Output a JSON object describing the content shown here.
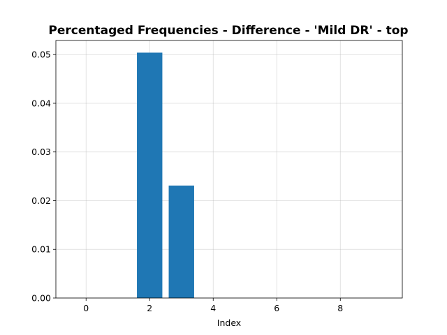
{
  "chart_data": {
    "type": "bar",
    "title": "Percentaged Frequencies - Difference - 'Mild DR' - top",
    "xlabel": "Index",
    "ylabel": "",
    "x": [
      0,
      1,
      2,
      3,
      4,
      5,
      6,
      7,
      8,
      9
    ],
    "values": [
      0.0,
      0.0,
      0.0504,
      0.0231,
      0.0,
      0.0,
      0.0,
      0.0,
      0.0,
      0.0
    ],
    "xlim": [
      -0.95,
      9.95
    ],
    "ylim": [
      0,
      0.0529
    ],
    "xticks": [
      0,
      2,
      4,
      6,
      8
    ],
    "xtick_labels": [
      "0",
      "2",
      "4",
      "6",
      "8"
    ],
    "yticks": [
      0.0,
      0.01,
      0.02,
      0.03,
      0.04,
      0.05
    ],
    "ytick_labels": [
      "0.00",
      "0.01",
      "0.02",
      "0.03",
      "0.04",
      "0.05"
    ],
    "grid": true,
    "bar_color": "#1f77b4"
  }
}
